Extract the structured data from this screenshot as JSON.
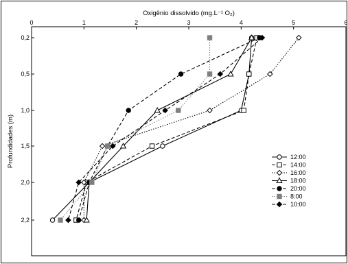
{
  "chart_data": {
    "type": "line",
    "title": "",
    "xlabel": "Oxigênio dissolvido (mg.L⁻¹ O₂)",
    "ylabel": "Profundidades (m)",
    "x_axis_position": "top",
    "xlim": [
      0,
      6
    ],
    "x_ticks": [
      "0",
      "1",
      "2",
      "3",
      "4",
      "5",
      "6"
    ],
    "y_categories": [
      "0,2",
      "0,5",
      "1,0",
      "1,5",
      "2,0",
      "2,2"
    ],
    "legend_position": "right",
    "grid": false,
    "series": [
      {
        "name": "12:00",
        "marker": "circle-open",
        "line": "solid",
        "color": "#000000",
        "x": [
          4.2,
          4.15,
          4.0,
          2.5,
          1.1,
          0.4
        ]
      },
      {
        "name": "14:00",
        "marker": "square-open",
        "line": "dashed",
        "color": "#000000",
        "x": [
          4.3,
          4.15,
          4.05,
          2.3,
          1.05,
          0.85
        ]
      },
      {
        "name": "16:00",
        "marker": "diamond-open",
        "line": "dotted",
        "color": "#000000",
        "x": [
          5.1,
          4.55,
          3.4,
          1.35,
          1.0,
          1.0
        ]
      },
      {
        "name": "18:00",
        "marker": "triangle-open",
        "line": "solid",
        "color": "#000000",
        "x": [
          4.2,
          3.8,
          2.4,
          1.75,
          1.1,
          1.05
        ]
      },
      {
        "name": "20:00",
        "marker": "circle-filled",
        "line": "dashed",
        "color": "#000000",
        "x": [
          4.35,
          2.85,
          1.85,
          1.45,
          1.1,
          0.9
        ]
      },
      {
        "name": "8:00",
        "marker": "square-filled",
        "line": "dotted",
        "color": "#808080",
        "x": [
          3.4,
          3.4,
          2.8,
          1.45,
          1.15,
          0.55
        ]
      },
      {
        "name": "10:00",
        "marker": "diamond-filled",
        "line": "dashed",
        "color": "#000000",
        "x": [
          4.4,
          3.6,
          2.55,
          1.55,
          0.9,
          0.7
        ]
      }
    ]
  }
}
